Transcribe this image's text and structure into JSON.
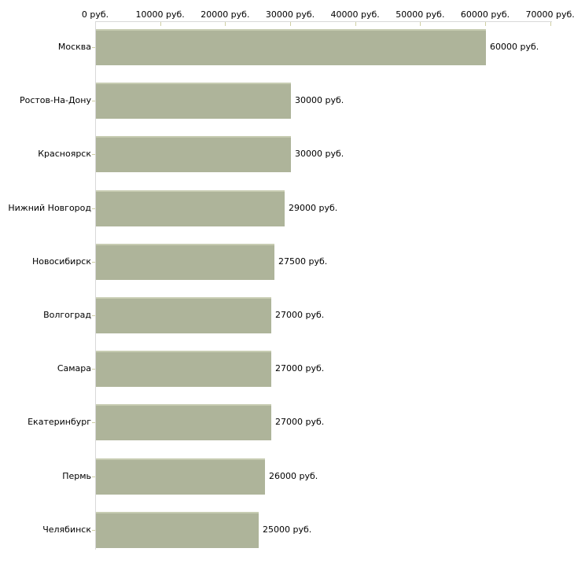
{
  "chart_data": {
    "type": "bar",
    "orientation": "horizontal",
    "title": "",
    "unit": "руб.",
    "categories": [
      "Москва",
      "Ростов-На-Дону",
      "Красноярск",
      "Нижний Новгород",
      "Новосибирск",
      "Волгоград",
      "Самара",
      "Екатеринбург",
      "Пермь",
      "Челябинск"
    ],
    "values": [
      60000,
      30000,
      30000,
      29000,
      27500,
      27000,
      27000,
      27000,
      26000,
      25000
    ],
    "bar_value_labels": [
      "60000 руб.",
      "30000 руб.",
      "30000 руб.",
      "29000 руб.",
      "27500 руб.",
      "27000 руб.",
      "27000 руб.",
      "27000 руб.",
      "26000 руб.",
      "25000 руб."
    ],
    "x_tick_values": [
      0,
      10000,
      20000,
      30000,
      40000,
      50000,
      60000,
      70000
    ],
    "x_tick_labels": [
      "0 руб.",
      "10000 руб.",
      "20000 руб.",
      "30000 руб.",
      "40000 руб.",
      "50000 руб.",
      "60000 руб.",
      "70000 руб."
    ],
    "xlim": [
      0,
      70000
    ],
    "grid": "off",
    "legend": "none",
    "axis_position": "top",
    "colors": {
      "bar_fill": "#aeb49a",
      "bar_top_highlight": "#c7ccb2",
      "axis_line": "#d9d9d9",
      "tick_mark": "#cfcfa4",
      "label_text": "#000000",
      "background": "#ffffff"
    }
  }
}
